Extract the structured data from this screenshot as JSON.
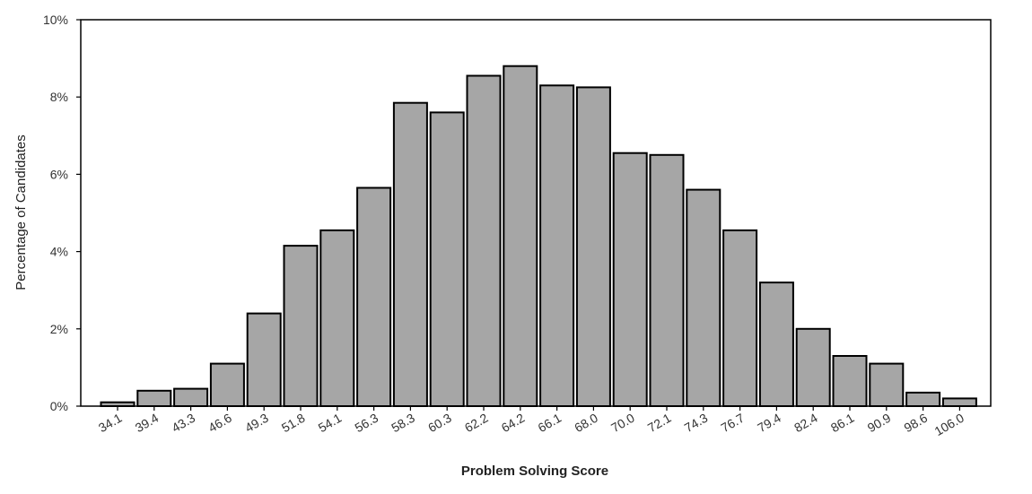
{
  "chart_data": {
    "type": "bar",
    "title": "",
    "xlabel": "Problem Solving Score",
    "ylabel": "Percentage of Candidates",
    "categories": [
      "34.1",
      "39.4",
      "43.3",
      "46.6",
      "49.3",
      "51.8",
      "54.1",
      "56.3",
      "58.3",
      "60.3",
      "62.2",
      "64.2",
      "66.1",
      "68.0",
      "70.0",
      "72.1",
      "74.3",
      "76.7",
      "79.4",
      "82.4",
      "86.1",
      "90.9",
      "98.6",
      "106.0"
    ],
    "values": [
      0.1,
      0.4,
      0.45,
      1.1,
      2.4,
      4.15,
      4.55,
      5.65,
      7.85,
      7.6,
      8.55,
      8.8,
      8.3,
      8.25,
      6.55,
      6.5,
      5.6,
      4.55,
      3.2,
      2.0,
      1.3,
      1.1,
      0.35,
      0.2
    ],
    "ylim": [
      0,
      10
    ],
    "yticks": [
      0,
      2,
      4,
      6,
      8,
      10
    ],
    "ytick_labels": [
      "0%",
      "2%",
      "4%",
      "6%",
      "8%",
      "10%"
    ],
    "bar_color": "#a6a6a6",
    "bar_edge_color": "#000000",
    "grid": false,
    "legend": "none"
  }
}
